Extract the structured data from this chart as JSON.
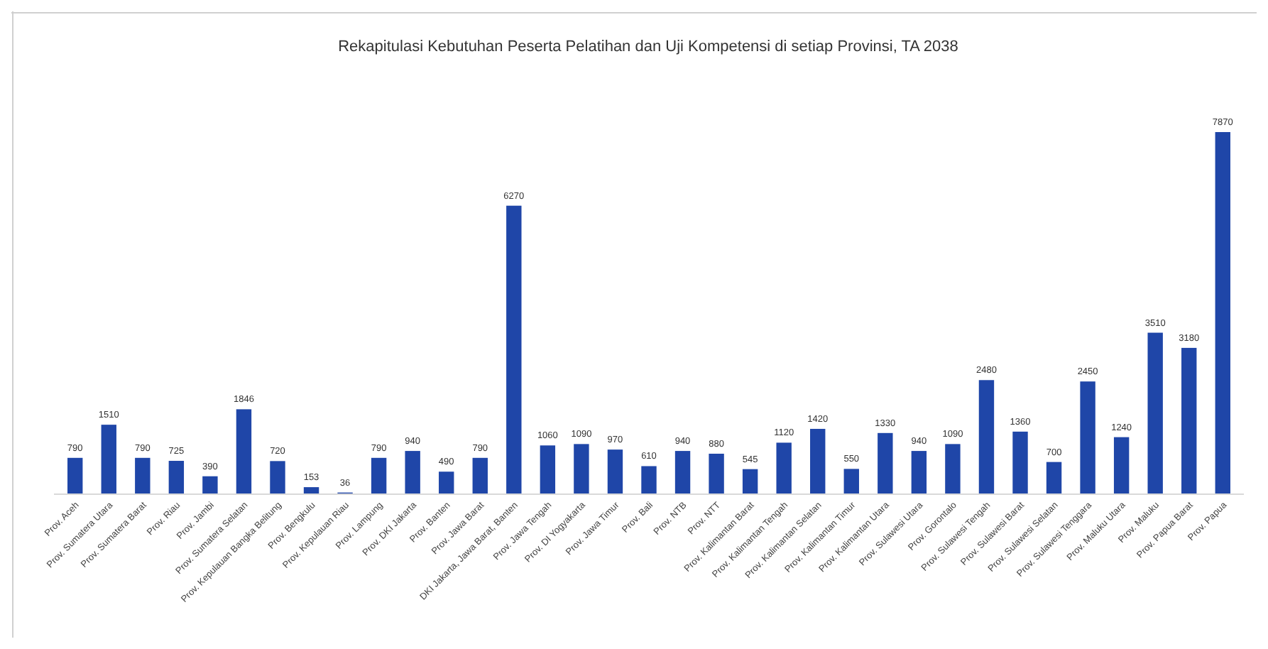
{
  "chart_data": {
    "type": "bar",
    "title": "Rekapitulasi Kebutuhan Peserta Pelatihan dan Uji Kompetensi di setiap Provinsi, TA 2038",
    "categories": [
      "Prov. Aceh",
      "Prov. Sumatera Utara",
      "Prov. Sumatera Barat",
      "Prov. Riau",
      "Prov. Jambi",
      "Prov. Sumatera Selatan",
      "Prov. Kepulauan Bangka Belitung",
      "Prov. Bengkulu",
      "Prov. Kepulauan Riau",
      "Prov. Lampung",
      "Prov. DKI Jakarta",
      "Prov. Banten",
      "Prov. Jawa Barat",
      "DKI Jakarta, Jawa Barat, Banten",
      "Prov. Jawa Tengah",
      "Prov. DI Yogyakarta",
      "Prov. Jawa Timur",
      "Prov. Bali",
      "Prov. NTB",
      "Prov. NTT",
      "Prov. Kalimantan Barat",
      "Prov. Kalimantan Tengah",
      "Prov. Kalimantan Selatan",
      "Prov. Kalimantan Timur",
      "Prov. Kalimantan Utara",
      "Prov. Sulawesi Utara",
      "Prov. Gorontalo",
      "Prov. Sulawesi Tengah",
      "Prov. Sulawesi Barat",
      "Prov. Sulawesi Selatan",
      "Prov. Sulawesi Tenggara",
      "Prov. Maluku Utara",
      "Prov. Maluku",
      "Prov. Papua Barat",
      "Prov. Papua"
    ],
    "values": [
      790,
      1510,
      790,
      725,
      390,
      1846,
      720,
      153,
      36,
      790,
      940,
      490,
      790,
      6270,
      1060,
      1090,
      970,
      610,
      940,
      880,
      545,
      1120,
      1420,
      550,
      1330,
      940,
      1090,
      2480,
      1360,
      700,
      2450,
      1240,
      3510,
      3180,
      7870
    ],
    "color": "#1f46a8",
    "data_labels": true
  }
}
